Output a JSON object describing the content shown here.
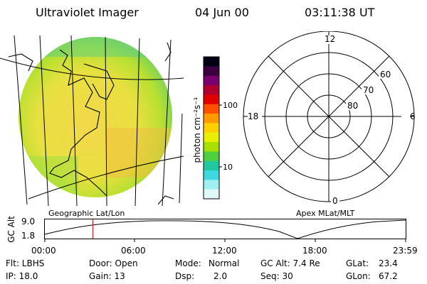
{
  "header": {
    "instrument": "Ultraviolet Imager",
    "date": "04 Jun 00",
    "time": "03:11:38 UT"
  },
  "panels": {
    "left_label": "Geographic Lat/Lon",
    "right_label": "Apex MLat/MLT"
  },
  "colorbar": {
    "unit_label": "photon cm⁻²s⁻¹",
    "tick_high": "100",
    "tick_low": "10",
    "colors": [
      "#000010",
      "#3a0040",
      "#7a0070",
      "#b00030",
      "#e00000",
      "#ff5000",
      "#ff9a00",
      "#ffd000",
      "#e8f000",
      "#a8e000",
      "#50d040",
      "#20c8a0",
      "#40d8e0",
      "#a0f0f0",
      "#e0f8f8"
    ]
  },
  "polar": {
    "mlt_top": "12",
    "mlt_left": "18",
    "mlt_right": "6",
    "mlt_bottom": "0",
    "lat_60": "60",
    "lat_70": "70",
    "lat_80": "80"
  },
  "altitude_plot": {
    "ylabel": "GC Alt",
    "y_high": "9.0",
    "y_low": "1.8",
    "x_ticks": [
      "00:00",
      "06:00",
      "12:00",
      "18:00",
      "23:59"
    ],
    "marker_hour": 3.19
  },
  "status": {
    "filter": "Flt: LBHS",
    "door": "Door: Open",
    "mode_label": "Mode:",
    "mode_value": "Normal",
    "gc_alt": "GC Alt: 7.4 Re",
    "glat_label": "GLat:",
    "glat_value": "23.4",
    "ip": "IP: 18.0",
    "gain": "Gain: 13",
    "dsp_label": "Dsp:",
    "dsp_value": "2.0",
    "seq": "Seq: 30",
    "glon_label": "GLon:",
    "glon_value": "67.2"
  }
}
